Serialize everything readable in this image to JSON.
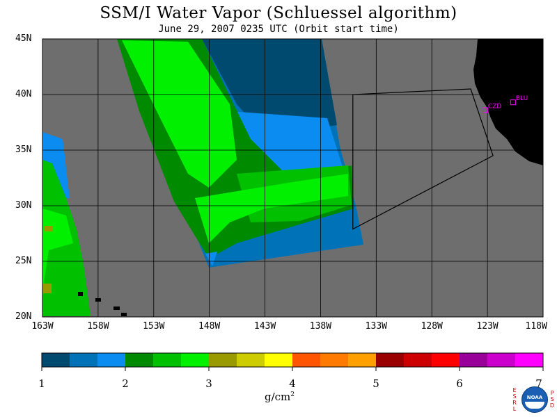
{
  "title": "SSM/I Water Vapor (Schluessel algorithm)",
  "subtitle": "June 29, 2007  0235 UTC  (Orbit start time)",
  "map": {
    "lat_range": [
      20,
      45
    ],
    "lon_range": [
      -163,
      -118
    ],
    "lat_labels": [
      "45N",
      "40N",
      "35N",
      "30N",
      "25N",
      "20N"
    ],
    "lon_labels": [
      "163W",
      "158W",
      "153W",
      "148W",
      "143W",
      "138W",
      "133W",
      "128W",
      "123W",
      "118W"
    ],
    "background_color": "#6e6e6e",
    "land_color": "#000000",
    "stations": [
      {
        "label": "CZD",
        "lat": 38.6,
        "lon": -123.2
      },
      {
        "label": "BLU",
        "lat": 39.3,
        "lon": -120.7
      }
    ],
    "station_color": "#ff00ff",
    "flight_track": [
      [
        -135.1,
        40.0
      ],
      [
        -124.5,
        40.5
      ],
      [
        -122.5,
        34.5
      ],
      [
        -135.1,
        27.9
      ],
      [
        -135.1,
        40.0
      ]
    ]
  },
  "colorbar": {
    "colors": [
      "#004a70",
      "#0073b8",
      "#0a8cf0",
      "#008a00",
      "#00c000",
      "#00f000",
      "#999900",
      "#cccc00",
      "#ffff00",
      "#ff5500",
      "#ff7a00",
      "#ffa000",
      "#990000",
      "#cc0000",
      "#ff0000",
      "#990099",
      "#cc00cc",
      "#ff00ff"
    ],
    "ticks": [
      "1",
      "2",
      "3",
      "4",
      "5",
      "6",
      "7"
    ],
    "min": 1,
    "max": 7,
    "units": "g/cm",
    "units_sup": "2"
  },
  "logo": {
    "left_letters": [
      "E",
      "S",
      "R",
      "L"
    ],
    "center": "NOAA",
    "right_letters": [
      "P",
      "S",
      "D"
    ]
  }
}
